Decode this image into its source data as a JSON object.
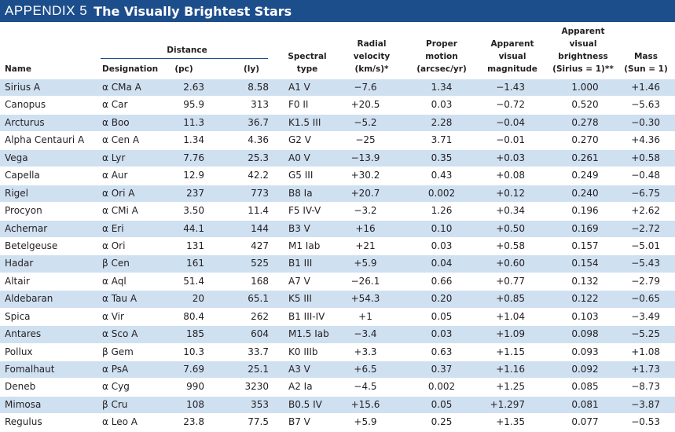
{
  "header": {
    "prefix": "APPENDIX 5",
    "title": "The Visually Brightest Stars"
  },
  "columns": {
    "name": "Name",
    "designation": "Designation",
    "distance_group": "Distance",
    "pc": "(pc)",
    "ly": "(ly)",
    "spectral_1": "Spectral",
    "spectral_2": "type",
    "rv_1": "Radial",
    "rv_2": "velocity",
    "rv_3": "(km/s)*",
    "pm_1": "Proper",
    "pm_2": "motion",
    "pm_3": "(arcsec/yr)",
    "mag_1": "Apparent",
    "mag_2": "visual",
    "mag_3": "magnitude",
    "br_1": "Apparent",
    "br_2": "visual",
    "br_3": "brightness",
    "br_4": "(Sirius = 1)**",
    "mass_1": "Mass",
    "mass_2": "(Sun = 1)"
  },
  "rows": [
    {
      "name": "Sirius A",
      "designation": "α CMa A",
      "pc": "2.63",
      "ly": "8.58",
      "spectral": "A1 V",
      "rv": "−7.6",
      "pm": "1.34",
      "mag": "−1.43",
      "brightness": "1.000",
      "mass": "+1.46"
    },
    {
      "name": "Canopus",
      "designation": "α Car",
      "pc": "95.9",
      "ly": "313",
      "spectral": "F0 II",
      "rv": "+20.5",
      "pm": "0.03",
      "mag": "−0.72",
      "brightness": "0.520",
      "mass": "−5.63"
    },
    {
      "name": "Arcturus",
      "designation": "α Boo",
      "pc": "11.3",
      "ly": "36.7",
      "spectral": "K1.5 III",
      "rv": "−5.2",
      "pm": "2.28",
      "mag": "−0.04",
      "brightness": "0.278",
      "mass": "−0.30"
    },
    {
      "name": "Alpha Centauri A",
      "designation": "α Cen A",
      "pc": "1.34",
      "ly": "4.36",
      "spectral": "G2 V",
      "rv": "−25",
      "pm": "3.71",
      "mag": "−0.01",
      "brightness": "0.270",
      "mass": "+4.36"
    },
    {
      "name": "Vega",
      "designation": "α Lyr",
      "pc": "7.76",
      "ly": "25.3",
      "spectral": "A0 V",
      "rv": "−13.9",
      "pm": "0.35",
      "mag": "+0.03",
      "brightness": "0.261",
      "mass": "+0.58"
    },
    {
      "name": "Capella",
      "designation": "α Aur",
      "pc": "12.9",
      "ly": "42.2",
      "spectral": "G5 III",
      "rv": "+30.2",
      "pm": "0.43",
      "mag": "+0.08",
      "brightness": "0.249",
      "mass": "−0.48"
    },
    {
      "name": "Rigel",
      "designation": "α Ori A",
      "pc": "237",
      "ly": "773",
      "spectral": "B8 Ia",
      "rv": "+20.7",
      "pm": "0.002",
      "mag": "+0.12",
      "brightness": "0.240",
      "mass": "−6.75"
    },
    {
      "name": "Procyon",
      "designation": "α CMi A",
      "pc": "3.50",
      "ly": "11.4",
      "spectral": "F5 IV-V",
      "rv": "−3.2",
      "pm": "1.26",
      "mag": "+0.34",
      "brightness": "0.196",
      "mass": "+2.62"
    },
    {
      "name": "Achernar",
      "designation": "α Eri",
      "pc": "44.1",
      "ly": "144",
      "spectral": "B3 V",
      "rv": "+16",
      "pm": "0.10",
      "mag": "+0.50",
      "brightness": "0.169",
      "mass": "−2.72"
    },
    {
      "name": "Betelgeuse",
      "designation": "α Ori",
      "pc": "131",
      "ly": "427",
      "spectral": "M1 Iab",
      "rv": "+21",
      "pm": "0.03",
      "mag": "+0.58",
      "brightness": "0.157",
      "mass": "−5.01"
    },
    {
      "name": "Hadar",
      "designation": "β Cen",
      "pc": "161",
      "ly": "525",
      "spectral": "B1 III",
      "rv": "+5.9",
      "pm": "0.04",
      "mag": "+0.60",
      "brightness": "0.154",
      "mass": "−5.43"
    },
    {
      "name": "Altair",
      "designation": "α Aql",
      "pc": "51.4",
      "ly": "168",
      "spectral": "A7 V",
      "rv": "−26.1",
      "pm": "0.66",
      "mag": "+0.77",
      "brightness": "0.132",
      "mass": "−2.79"
    },
    {
      "name": "Aldebaran",
      "designation": "α Tau A",
      "pc": "20",
      "ly": "65.1",
      "spectral": "K5 III",
      "rv": "+54.3",
      "pm": "0.20",
      "mag": "+0.85",
      "brightness": "0.122",
      "mass": "−0.65"
    },
    {
      "name": "Spica",
      "designation": "α Vir",
      "pc": "80.4",
      "ly": "262",
      "spectral": "B1 III-IV",
      "rv": "+1",
      "pm": "0.05",
      "mag": "+1.04",
      "brightness": "0.103",
      "mass": "−3.49"
    },
    {
      "name": "Antares",
      "designation": "α Sco A",
      "pc": "185",
      "ly": "604",
      "spectral": "M1.5 Iab",
      "rv": "−3.4",
      "pm": "0.03",
      "mag": "+1.09",
      "brightness": "0.098",
      "mass": "−5.25"
    },
    {
      "name": "Pollux",
      "designation": "β Gem",
      "pc": "10.3",
      "ly": "33.7",
      "spectral": "K0 IIIb",
      "rv": "+3.3",
      "pm": "0.63",
      "mag": "+1.15",
      "brightness": "0.093",
      "mass": "+1.08"
    },
    {
      "name": "Fomalhaut",
      "designation": "α PsA",
      "pc": "7.69",
      "ly": "25.1",
      "spectral": "A3 V",
      "rv": "+6.5",
      "pm": "0.37",
      "mag": "+1.16",
      "brightness": "0.092",
      "mass": "+1.73"
    },
    {
      "name": "Deneb",
      "designation": "α Cyg",
      "pc": "990",
      "ly": "3230",
      "spectral": "A2 Ia",
      "rv": "−4.5",
      "pm": "0.002",
      "mag": "+1.25",
      "brightness": "0.085",
      "mass": "−8.73"
    },
    {
      "name": "Mimosa",
      "designation": "β Cru",
      "pc": "108",
      "ly": "353",
      "spectral": "B0.5 IV",
      "rv": "+15.6",
      "pm": "0.05",
      "mag": "+1.297",
      "brightness": "0.081",
      "mass": "−3.87"
    },
    {
      "name": "Regulus",
      "designation": "α Leo A",
      "pc": "23.8",
      "ly": "77.5",
      "spectral": "B7 V",
      "rv": "+5.9",
      "pm": "0.25",
      "mag": "+1.35",
      "brightness": "0.077",
      "mass": "−0.53"
    }
  ]
}
